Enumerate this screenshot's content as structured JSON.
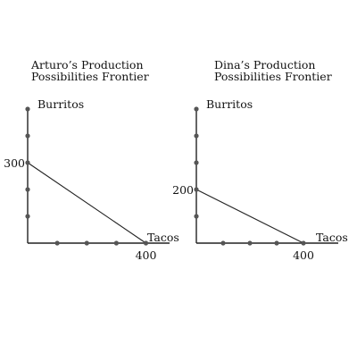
{
  "chart_data": [
    {
      "type": "line",
      "title": [
        "Arturo’s Production",
        "Possibilities Frontier"
      ],
      "xlabel": "Tacos",
      "ylabel": "Burritos",
      "xlim": [
        0,
        480
      ],
      "ylim": [
        0,
        500
      ],
      "x_tick_values": [
        100,
        200,
        300,
        400
      ],
      "y_tick_values": [
        100,
        200,
        300,
        400,
        500
      ],
      "x_tick_labels": [
        {
          "value": 400,
          "label": "400"
        }
      ],
      "y_tick_labels": [
        {
          "value": 300,
          "label": "300"
        }
      ],
      "series": [
        {
          "x": [
            0,
            400
          ],
          "y": [
            300,
            0
          ]
        }
      ]
    },
    {
      "type": "line",
      "title": [
        "Dina’s Production",
        "Possibilities Frontier"
      ],
      "xlabel": "Tacos",
      "ylabel": "Burritos",
      "xlim": [
        0,
        530
      ],
      "ylim": [
        0,
        500
      ],
      "x_tick_values": [
        100,
        200,
        300,
        400
      ],
      "y_tick_values": [
        100,
        200,
        300,
        400,
        500
      ],
      "x_tick_labels": [
        {
          "value": 400,
          "label": "400"
        }
      ],
      "y_tick_labels": [
        {
          "value": 200,
          "label": "200"
        }
      ],
      "series": [
        {
          "x": [
            0,
            400
          ],
          "y": [
            200,
            0
          ]
        }
      ]
    }
  ],
  "colors": {
    "axis": "#222222",
    "marker": "#555555",
    "line": "#222222",
    "text": "#111111"
  }
}
